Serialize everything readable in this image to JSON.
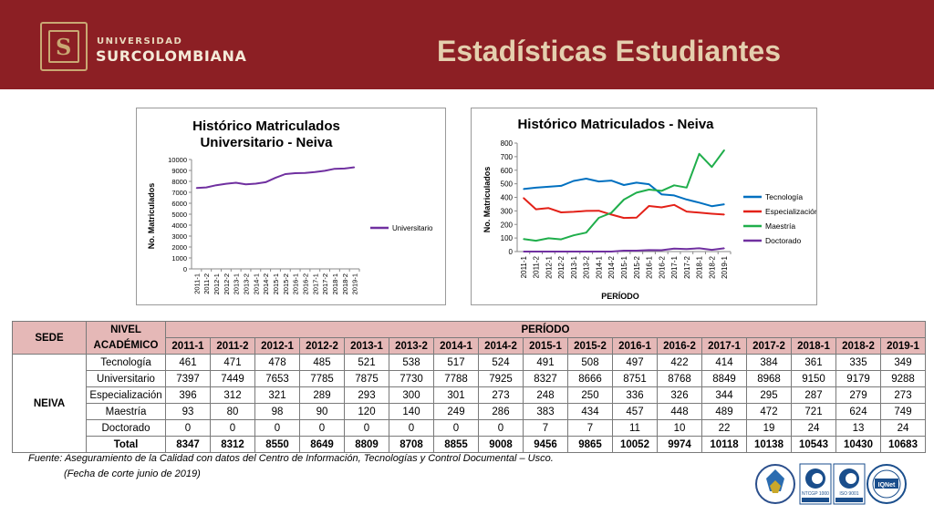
{
  "header": {
    "logo_line1": "UNIVERSIDAD",
    "logo_line2": "SURCOLOMBIANA",
    "title": "Estadísticas Estudiantes",
    "bg_color": "#8c1f24",
    "title_color": "#e4cfae"
  },
  "chart_data": [
    {
      "type": "line",
      "title": "Histórico Matriculados Universitario - Neiva",
      "title_lines": [
        "Histórico Matriculados",
        "Universitario - Neiva"
      ],
      "xlabel": "",
      "ylabel": "No. Matriculados",
      "ylim": [
        0,
        10000
      ],
      "yticks": [
        0,
        1000,
        2000,
        3000,
        4000,
        5000,
        6000,
        7000,
        8000,
        9000,
        10000
      ],
      "grid": false,
      "legend_position": "right",
      "categories": [
        "2011-1",
        "2011-2",
        "2012-1",
        "2012-2",
        "2013-1",
        "2013-2",
        "2014-1",
        "2014-2",
        "2015-1",
        "2015-2",
        "2016-1",
        "2016-2",
        "2017-1",
        "2017-2",
        "2018-1",
        "2018-2",
        "2019-1"
      ],
      "series": [
        {
          "name": "Universitario",
          "color": "#7030a0",
          "values": [
            7397,
            7449,
            7653,
            7785,
            7875,
            7730,
            7788,
            7925,
            8327,
            8666,
            8751,
            8768,
            8849,
            8968,
            9150,
            9179,
            9288
          ]
        }
      ]
    },
    {
      "type": "line",
      "title": "Histórico Matriculados - Neiva",
      "xlabel": "PERÍODO",
      "ylabel": "No. Matriculados",
      "ylim": [
        0,
        800
      ],
      "yticks": [
        0,
        100,
        200,
        300,
        400,
        500,
        600,
        700,
        800
      ],
      "grid": false,
      "legend_position": "right",
      "categories": [
        "2011-1",
        "2011-2",
        "2012-1",
        "2012-2",
        "2013-1",
        "2013-2",
        "2014-1",
        "2014-2",
        "2015-1",
        "2015-2",
        "2016-1",
        "2016-2",
        "2017-1",
        "2017-2",
        "2018-1",
        "2018-2",
        "2019-1"
      ],
      "series": [
        {
          "name": "Tecnología",
          "color": "#0070c0",
          "values": [
            461,
            471,
            478,
            485,
            521,
            538,
            517,
            524,
            491,
            508,
            497,
            422,
            414,
            384,
            361,
            335,
            349
          ]
        },
        {
          "name": "Especialización",
          "color": "#e32118",
          "values": [
            396,
            312,
            321,
            289,
            293,
            300,
            301,
            273,
            248,
            250,
            336,
            326,
            344,
            295,
            287,
            279,
            273
          ]
        },
        {
          "name": "Maestría",
          "color": "#1fae4b",
          "values": [
            93,
            80,
            98,
            90,
            120,
            140,
            249,
            286,
            383,
            434,
            457,
            448,
            489,
            472,
            721,
            624,
            749
          ]
        },
        {
          "name": "Doctorado",
          "color": "#7030a0",
          "values": [
            0,
            0,
            0,
            0,
            0,
            0,
            0,
            0,
            7,
            7,
            11,
            10,
            22,
            19,
            24,
            13,
            24
          ]
        }
      ]
    }
  ],
  "table": {
    "sede_header": "SEDE",
    "nivel_header_line1": "NIVEL",
    "nivel_header_line2": "ACADÉMICO",
    "periodo_header": "PERÍODO",
    "sede": "NEIVA",
    "periods": [
      "2011-1",
      "2011-2",
      "2012-1",
      "2012-2",
      "2013-1",
      "2013-2",
      "2014-1",
      "2014-2",
      "2015-1",
      "2015-2",
      "2016-1",
      "2016-2",
      "2017-1",
      "2017-2",
      "2018-1",
      "2018-2",
      "2019-1"
    ],
    "rows": [
      {
        "label": "Tecnología",
        "values": [
          461,
          471,
          478,
          485,
          521,
          538,
          517,
          524,
          491,
          508,
          497,
          422,
          414,
          384,
          361,
          335,
          349
        ]
      },
      {
        "label": "Universitario",
        "values": [
          7397,
          7449,
          7653,
          7785,
          7875,
          7730,
          7788,
          7925,
          8327,
          8666,
          8751,
          8768,
          8849,
          8968,
          9150,
          9179,
          9288
        ]
      },
      {
        "label": "Especialización",
        "values": [
          396,
          312,
          321,
          289,
          293,
          300,
          301,
          273,
          248,
          250,
          336,
          326,
          344,
          295,
          287,
          279,
          273
        ]
      },
      {
        "label": "Maestría",
        "values": [
          93,
          80,
          98,
          90,
          120,
          140,
          249,
          286,
          383,
          434,
          457,
          448,
          489,
          472,
          721,
          624,
          749
        ]
      },
      {
        "label": "Doctorado",
        "values": [
          0,
          0,
          0,
          0,
          0,
          0,
          0,
          0,
          7,
          7,
          11,
          10,
          22,
          19,
          24,
          13,
          24
        ]
      }
    ],
    "total_label": "Total",
    "totals": [
      8347,
      8312,
      8550,
      8649,
      8809,
      8708,
      8855,
      9008,
      9456,
      9865,
      10052,
      9974,
      10118,
      10138,
      10543,
      10430,
      10683
    ],
    "header_bg": "#e5b8b7"
  },
  "footer": {
    "source": "Fuente: Aseguramiento de la Calidad con datos del Centro de Información, Tecnologías y Control Documental – Usco.",
    "cutoff": "(Fecha de corte junio de 2019)"
  },
  "cert_logos": {
    "icons": [
      "acreditacion-seal-icon",
      "ntcgp-icontec-icon",
      "iso9001-icontec-icon",
      "iqnet-seal-icon"
    ],
    "labels": [
      "NTCGP 1000",
      "ISO 9001",
      "IQNet"
    ]
  }
}
